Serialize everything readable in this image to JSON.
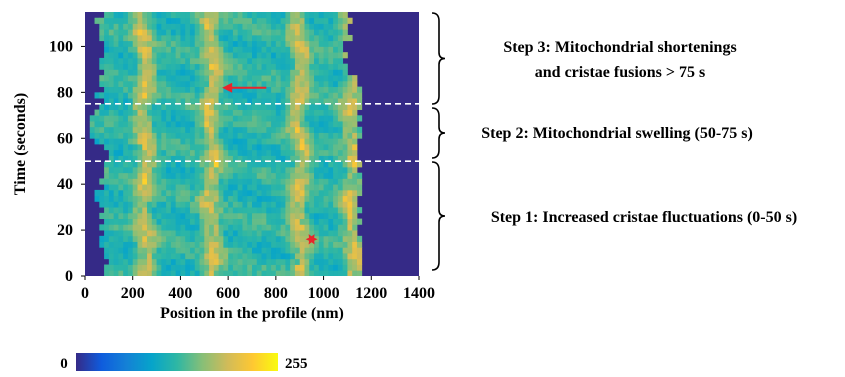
{
  "chart_data": {
    "type": "heatmap",
    "title": "",
    "xlabel": "Position in the profile (nm)",
    "ylabel": "Time (seconds)",
    "xlim": [
      0,
      1400
    ],
    "ylim": [
      0,
      115
    ],
    "xticks": [
      0,
      200,
      400,
      600,
      800,
      1000,
      1200,
      1400
    ],
    "yticks": [
      0,
      20,
      40,
      60,
      80,
      100
    ],
    "grid": false,
    "colorbar": {
      "min_label": "0",
      "max_label": "255",
      "range": [
        0,
        255
      ],
      "colormap": "parula",
      "colors": [
        "#352a87",
        "#0f5cdd",
        "#1481d6",
        "#06a4ca",
        "#2eb7a4",
        "#87bf77",
        "#d1bb59",
        "#fec832",
        "#f9fb0e"
      ]
    },
    "background_color": "#352a87",
    "dashed_lines_y": [
      50,
      75
    ],
    "annotations": [
      {
        "type": "arrow",
        "color": "#e8252b",
        "from": [
          760,
          82
        ],
        "to": [
          575,
          82
        ]
      },
      {
        "type": "star",
        "color": "#e8252b",
        "at": [
          950,
          16
        ]
      }
    ],
    "bright_columns_nm": [
      250,
      530,
      900,
      1120
    ],
    "steps": [
      {
        "lines": [
          "Step 3: Mitochondrial shortenings",
          "and cristae fusions > 75 s"
        ],
        "time_range": [
          75,
          115
        ]
      },
      {
        "lines": [
          "Step 2: Mitochondrial swelling (50-75 s)"
        ],
        "time_range": [
          50,
          75
        ]
      },
      {
        "lines": [
          "Step 1: Increased cristae fluctuations (0-50 s)"
        ],
        "time_range": [
          0,
          50
        ]
      }
    ]
  }
}
